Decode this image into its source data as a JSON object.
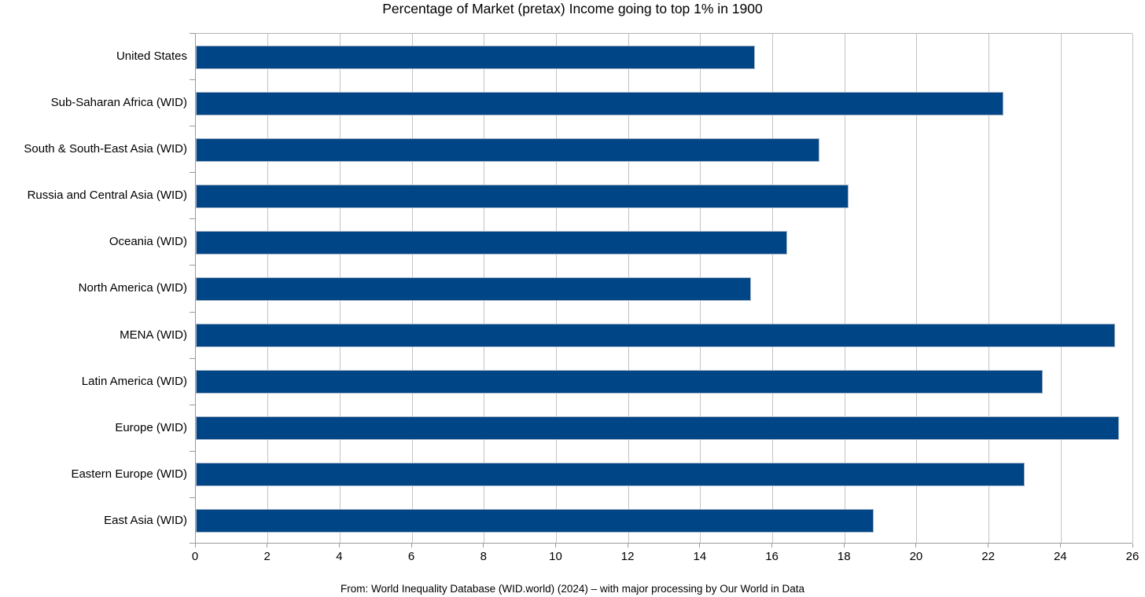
{
  "title": "Percentage of Market (pretax) Income going to top 1% in 1900",
  "footer": "From: World Inequality Database (WID.world) (2024) – with major processing by Our World in Data",
  "colors": {
    "bar": "#004586",
    "bar_border": "#a8b4c6",
    "gridline": "#c4c4c4",
    "axis": "#9a9a9a",
    "text": "#000000",
    "background": "#ffffff"
  },
  "chart_data": {
    "type": "bar",
    "orientation": "horizontal",
    "title": "Percentage of Market (pretax) Income going to top 1% in 1900",
    "xlabel": "",
    "ylabel": "",
    "categories": [
      "United States",
      "Sub-Saharan Africa (WID)",
      "South & South-East Asia (WID)",
      "Russia and Central Asia (WID)",
      "Oceania (WID)",
      "North America (WID)",
      "MENA (WID)",
      "Latin America (WID)",
      "Europe (WID)",
      "Eastern Europe (WID)",
      "East Asia (WID)"
    ],
    "values": [
      15.5,
      22.4,
      17.3,
      18.1,
      16.4,
      15.4,
      25.5,
      23.5,
      25.6,
      23.0,
      18.8
    ],
    "xlim": [
      0,
      26
    ],
    "xticks": [
      0,
      2,
      4,
      6,
      8,
      10,
      12,
      14,
      16,
      18,
      20,
      22,
      24,
      26
    ],
    "grid": true,
    "legend": false,
    "category_order": "top-to-bottom",
    "source_note": "From: World Inequality Database (WID.world) (2024) – with major processing by Our World in Data"
  }
}
